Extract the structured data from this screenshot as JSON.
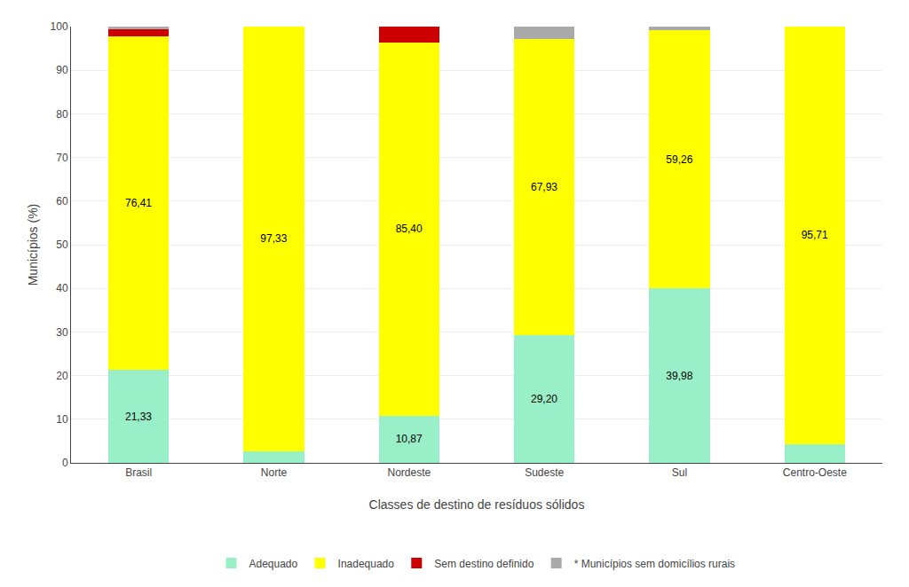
{
  "chart_data": {
    "type": "bar",
    "stacked": true,
    "categories": [
      "Brasil",
      "Norte",
      "Nordeste",
      "Sudeste",
      "Sul",
      "Centro-Oeste"
    ],
    "series": [
      {
        "name": "Adequado",
        "color": "#99f0c8",
        "values": [
          21.33,
          2.67,
          10.87,
          29.2,
          39.98,
          4.29
        ],
        "value_labels": [
          "21,33",
          null,
          "10,87",
          "29,20",
          "39,98",
          null
        ]
      },
      {
        "name": "Inadequado",
        "color": "#ffff00",
        "values": [
          76.41,
          97.33,
          85.4,
          67.93,
          59.26,
          95.71
        ],
        "value_labels": [
          "76,41",
          "97,33",
          "85,40",
          "67,93",
          "59,26",
          "95,71"
        ]
      },
      {
        "name": "Sem destino definido",
        "color": "#cc0000",
        "values": [
          1.59,
          0.0,
          3.73,
          0.0,
          0.0,
          0.0
        ]
      },
      {
        "name": "* Municípios sem domicílios rurais",
        "color": "#aaaaaa",
        "values": [
          0.67,
          0.0,
          0.0,
          2.87,
          0.76,
          0.0
        ]
      }
    ],
    "xlabel": "Classes de destino de resíduos sólidos",
    "ylabel": "Municípios (%)",
    "ylim": [
      0,
      100
    ],
    "yticks": [
      0,
      10,
      20,
      30,
      40,
      50,
      60,
      70,
      80,
      90,
      100
    ],
    "grid": true,
    "data_labels": true,
    "legend": "bottom"
  }
}
